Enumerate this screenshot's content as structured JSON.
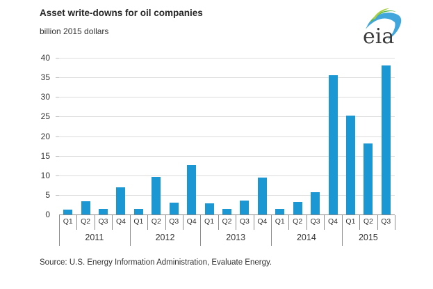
{
  "header": {
    "title": "Asset write-downs for oil companies",
    "subtitle": "billion 2015 dollars",
    "logo_text": "eia"
  },
  "footer": {
    "source": "Source:  U.S. Energy Information Administration, Evaluate Energy."
  },
  "chart_data": {
    "type": "bar",
    "title": "Asset write-downs for oil companies",
    "ylabel_unit": "billion 2015 dollars",
    "ylim": [
      0,
      40
    ],
    "yticks": [
      0,
      5,
      10,
      15,
      20,
      25,
      30,
      35,
      40
    ],
    "grid": true,
    "legend": "none",
    "bar_color": "#1b97d4",
    "grid_color": "#dcdcdc",
    "axis_color": "#8c8c8c",
    "years": [
      {
        "year": "2011",
        "quarters": [
          "Q1",
          "Q2",
          "Q3",
          "Q4"
        ],
        "values": [
          1.2,
          3.3,
          1.5,
          7.0
        ]
      },
      {
        "year": "2012",
        "quarters": [
          "Q1",
          "Q2",
          "Q3",
          "Q4"
        ],
        "values": [
          1.5,
          9.6,
          3.0,
          12.7
        ]
      },
      {
        "year": "2013",
        "quarters": [
          "Q1",
          "Q2",
          "Q3",
          "Q4"
        ],
        "values": [
          2.8,
          1.4,
          3.6,
          9.5
        ]
      },
      {
        "year": "2014",
        "quarters": [
          "Q1",
          "Q2",
          "Q3",
          "Q4"
        ],
        "values": [
          1.4,
          3.2,
          5.7,
          35.6
        ]
      },
      {
        "year": "2015",
        "quarters": [
          "Q1",
          "Q2",
          "Q3"
        ],
        "values": [
          25.2,
          18.1,
          38.0
        ]
      }
    ]
  }
}
